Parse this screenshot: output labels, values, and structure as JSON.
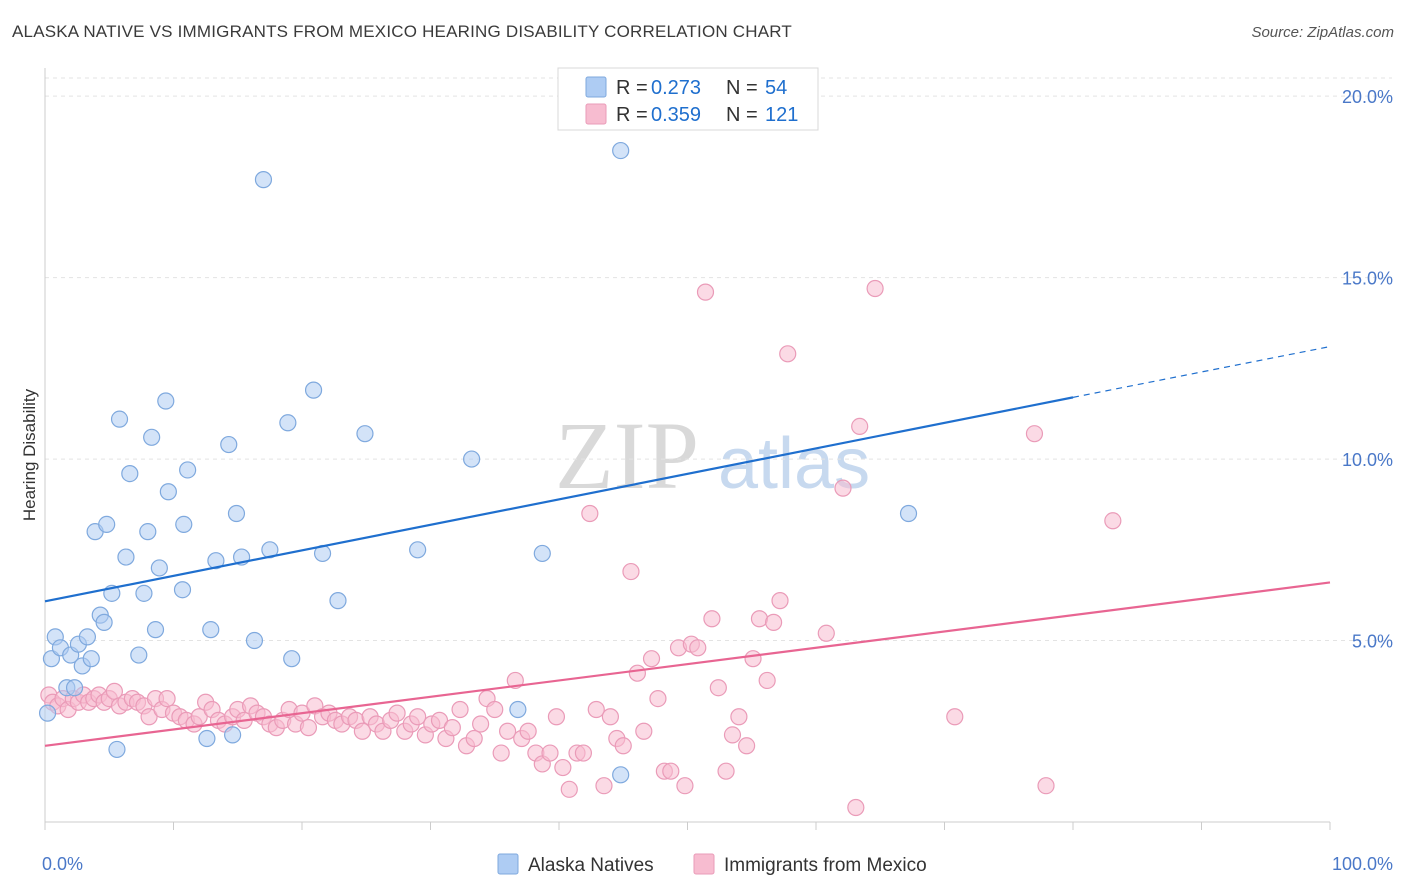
{
  "title": "ALASKA NATIVE VS IMMIGRANTS FROM MEXICO HEARING DISABILITY CORRELATION CHART",
  "source": "Source: ZipAtlas.com",
  "watermark": {
    "zip": "ZIP",
    "atlas": "atlas"
  },
  "colors": {
    "blue": "#1f6fce",
    "blue_fill": "#aeccf3",
    "blue_stroke": "#7fa9de",
    "pink": "#e86592",
    "pink_fill": "#f7bcd0",
    "pink_stroke": "#ea9bb8",
    "tick_text": "#4a78c8",
    "grid": "#e3e3e3"
  },
  "legend": {
    "rows": [
      {
        "r_label": "R = ",
        "r_value": "0.273",
        "n_label": "N = ",
        "n_value": "54",
        "color": "blue"
      },
      {
        "r_label": "R = ",
        "r_value": "0.359",
        "n_label": "N = ",
        "n_value": "121",
        "color": "pink"
      }
    ]
  },
  "chart_data": {
    "type": "scatter",
    "title": "ALASKA NATIVE VS IMMIGRANTS FROM MEXICO HEARING DISABILITY CORRELATION CHART",
    "xlabel": "",
    "ylabel": "Hearing Disability",
    "xlim": [
      0,
      100
    ],
    "ylim": [
      0,
      20.5
    ],
    "x_tick_labels": [
      "0.0%",
      "100.0%"
    ],
    "y_ticks": [
      5,
      10,
      15,
      20
    ],
    "y_tick_labels": [
      "5.0%",
      "10.0%",
      "15.0%",
      "20.0%"
    ],
    "grid": true,
    "legend_position": "top-center",
    "series": [
      {
        "name": "Alaska Natives",
        "color": "blue",
        "r": 0.273,
        "n": 54,
        "trend": {
          "x0": 0,
          "y0": 6.08,
          "x1": 80,
          "y1": 11.7,
          "dash_to_x": 100,
          "dash_to_y": 13.1
        },
        "points": [
          [
            0.2,
            3.0
          ],
          [
            0.5,
            4.5
          ],
          [
            0.8,
            5.1
          ],
          [
            1.2,
            4.8
          ],
          [
            1.7,
            3.7
          ],
          [
            2.0,
            4.6
          ],
          [
            2.3,
            3.7
          ],
          [
            2.6,
            4.9
          ],
          [
            2.9,
            4.3
          ],
          [
            3.3,
            5.1
          ],
          [
            3.6,
            4.5
          ],
          [
            3.9,
            8.0
          ],
          [
            4.3,
            5.7
          ],
          [
            4.6,
            5.5
          ],
          [
            4.8,
            8.2
          ],
          [
            5.2,
            6.3
          ],
          [
            5.6,
            2.0
          ],
          [
            5.8,
            11.1
          ],
          [
            6.3,
            7.3
          ],
          [
            6.6,
            9.6
          ],
          [
            7.3,
            4.6
          ],
          [
            7.7,
            6.3
          ],
          [
            8.0,
            8.0
          ],
          [
            8.3,
            10.6
          ],
          [
            8.6,
            5.3
          ],
          [
            8.9,
            7.0
          ],
          [
            9.4,
            11.6
          ],
          [
            9.6,
            9.1
          ],
          [
            10.7,
            6.4
          ],
          [
            10.8,
            8.2
          ],
          [
            11.1,
            9.7
          ],
          [
            12.6,
            2.3
          ],
          [
            12.9,
            5.3
          ],
          [
            13.3,
            7.2
          ],
          [
            14.3,
            10.4
          ],
          [
            14.6,
            2.4
          ],
          [
            14.9,
            8.5
          ],
          [
            15.3,
            7.3
          ],
          [
            16.3,
            5.0
          ],
          [
            17.0,
            17.7
          ],
          [
            17.5,
            7.5
          ],
          [
            18.9,
            11.0
          ],
          [
            19.2,
            4.5
          ],
          [
            20.9,
            11.9
          ],
          [
            21.6,
            7.4
          ],
          [
            22.8,
            6.1
          ],
          [
            24.9,
            10.7
          ],
          [
            29.0,
            7.5
          ],
          [
            33.2,
            10.0
          ],
          [
            36.8,
            3.1
          ],
          [
            38.7,
            7.4
          ],
          [
            44.8,
            1.3
          ],
          [
            44.8,
            18.5
          ],
          [
            67.2,
            8.5
          ]
        ]
      },
      {
        "name": "Immigrants from Mexico",
        "color": "pink",
        "r": 0.359,
        "n": 121,
        "trend": {
          "x0": 0,
          "y0": 2.1,
          "x1": 100,
          "y1": 6.6
        },
        "points": [
          [
            0.3,
            3.5
          ],
          [
            0.6,
            3.3
          ],
          [
            1.0,
            3.2
          ],
          [
            1.4,
            3.4
          ],
          [
            1.8,
            3.1
          ],
          [
            2.2,
            3.4
          ],
          [
            2.6,
            3.3
          ],
          [
            3.0,
            3.5
          ],
          [
            3.4,
            3.3
          ],
          [
            3.8,
            3.4
          ],
          [
            4.2,
            3.5
          ],
          [
            4.6,
            3.3
          ],
          [
            5.0,
            3.4
          ],
          [
            5.4,
            3.6
          ],
          [
            5.8,
            3.2
          ],
          [
            6.3,
            3.3
          ],
          [
            6.8,
            3.4
          ],
          [
            7.2,
            3.3
          ],
          [
            7.7,
            3.2
          ],
          [
            8.1,
            2.9
          ],
          [
            8.6,
            3.4
          ],
          [
            9.1,
            3.1
          ],
          [
            9.5,
            3.4
          ],
          [
            10.0,
            3.0
          ],
          [
            10.5,
            2.9
          ],
          [
            11.0,
            2.8
          ],
          [
            11.6,
            2.7
          ],
          [
            12.0,
            2.9
          ],
          [
            12.5,
            3.3
          ],
          [
            13.0,
            3.1
          ],
          [
            13.5,
            2.8
          ],
          [
            14.0,
            2.7
          ],
          [
            14.6,
            2.9
          ],
          [
            15.0,
            3.1
          ],
          [
            15.5,
            2.8
          ],
          [
            16.0,
            3.2
          ],
          [
            16.5,
            3.0
          ],
          [
            17.0,
            2.9
          ],
          [
            17.5,
            2.7
          ],
          [
            18.0,
            2.6
          ],
          [
            18.5,
            2.8
          ],
          [
            19.0,
            3.1
          ],
          [
            19.5,
            2.7
          ],
          [
            20.0,
            3.0
          ],
          [
            20.5,
            2.6
          ],
          [
            21.0,
            3.2
          ],
          [
            21.6,
            2.9
          ],
          [
            22.1,
            3.0
          ],
          [
            22.6,
            2.8
          ],
          [
            23.1,
            2.7
          ],
          [
            23.7,
            2.9
          ],
          [
            24.2,
            2.8
          ],
          [
            24.7,
            2.5
          ],
          [
            25.3,
            2.9
          ],
          [
            25.8,
            2.7
          ],
          [
            26.3,
            2.5
          ],
          [
            26.9,
            2.8
          ],
          [
            27.4,
            3.0
          ],
          [
            28.0,
            2.5
          ],
          [
            28.5,
            2.7
          ],
          [
            29.0,
            2.9
          ],
          [
            29.6,
            2.4
          ],
          [
            30.1,
            2.7
          ],
          [
            30.7,
            2.8
          ],
          [
            31.2,
            2.3
          ],
          [
            31.7,
            2.6
          ],
          [
            32.3,
            3.1
          ],
          [
            32.8,
            2.1
          ],
          [
            33.4,
            2.3
          ],
          [
            33.9,
            2.7
          ],
          [
            34.4,
            3.4
          ],
          [
            35.0,
            3.1
          ],
          [
            35.5,
            1.9
          ],
          [
            36.0,
            2.5
          ],
          [
            36.6,
            3.9
          ],
          [
            37.1,
            2.3
          ],
          [
            37.6,
            2.5
          ],
          [
            38.2,
            1.9
          ],
          [
            38.7,
            1.6
          ],
          [
            39.3,
            1.9
          ],
          [
            39.8,
            2.9
          ],
          [
            40.3,
            1.5
          ],
          [
            40.8,
            0.9
          ],
          [
            41.4,
            1.9
          ],
          [
            41.9,
            1.9
          ],
          [
            42.4,
            8.5
          ],
          [
            42.9,
            3.1
          ],
          [
            43.5,
            1.0
          ],
          [
            44.0,
            2.9
          ],
          [
            44.5,
            2.3
          ],
          [
            45.0,
            2.1
          ],
          [
            45.6,
            6.9
          ],
          [
            46.1,
            4.1
          ],
          [
            46.6,
            2.5
          ],
          [
            47.2,
            4.5
          ],
          [
            47.7,
            3.4
          ],
          [
            48.2,
            1.4
          ],
          [
            48.7,
            1.4
          ],
          [
            49.3,
            4.8
          ],
          [
            49.8,
            1.0
          ],
          [
            50.3,
            4.9
          ],
          [
            50.8,
            4.8
          ],
          [
            51.4,
            14.6
          ],
          [
            51.9,
            5.6
          ],
          [
            52.4,
            3.7
          ],
          [
            53.0,
            1.4
          ],
          [
            53.5,
            2.4
          ],
          [
            54.0,
            2.9
          ],
          [
            54.6,
            2.1
          ],
          [
            55.1,
            4.5
          ],
          [
            55.6,
            5.6
          ],
          [
            56.2,
            3.9
          ],
          [
            56.7,
            5.5
          ],
          [
            57.2,
            6.1
          ],
          [
            57.8,
            12.9
          ],
          [
            60.8,
            5.2
          ],
          [
            62.1,
            9.2
          ],
          [
            63.4,
            10.9
          ],
          [
            63.1,
            0.4
          ],
          [
            64.6,
            14.7
          ],
          [
            70.8,
            2.9
          ],
          [
            77.0,
            10.7
          ],
          [
            77.9,
            1.0
          ],
          [
            83.1,
            8.3
          ]
        ]
      }
    ]
  },
  "bottom_legend": [
    {
      "label": "Alaska Natives",
      "color": "blue"
    },
    {
      "label": "Immigrants from Mexico",
      "color": "pink"
    }
  ]
}
